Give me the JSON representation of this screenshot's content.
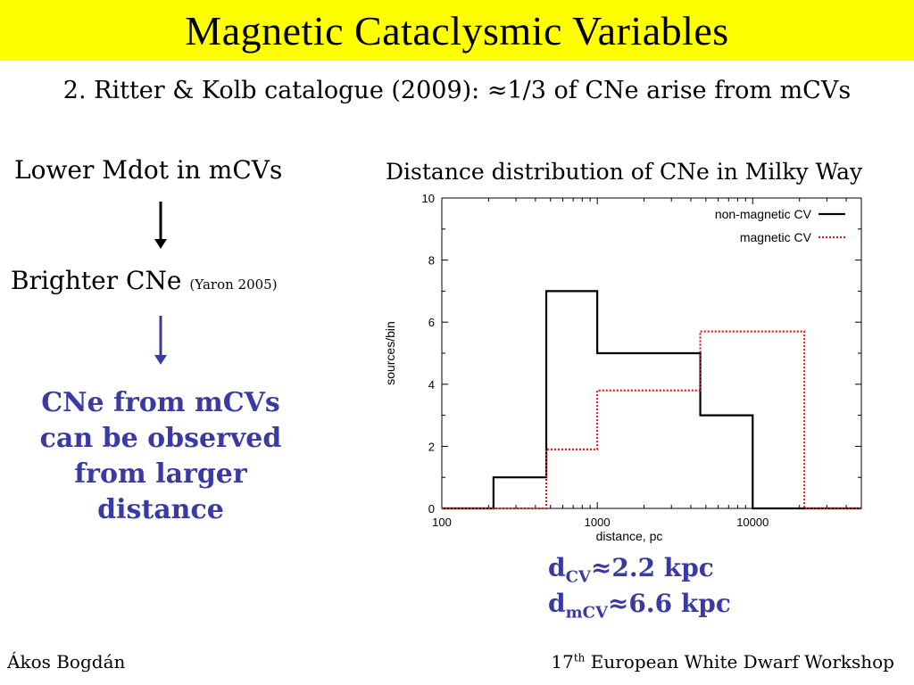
{
  "title": "Magnetic Cataclysmic Variables",
  "subtitle": "2. Ritter & Kolb catalogue (2009): ≈1/3 of CNe arise from mCVs",
  "left": {
    "lower_mdot": "Lower Mdot in mCVs",
    "brighter": "Brighter CNe",
    "brighter_cite": "(Yaron 2005)",
    "conclusion": "CNe from mCVs can be observed from larger distance"
  },
  "chart_title": "Distance distribution of CNe in Milky Way",
  "distances": {
    "cv_label": "d",
    "cv_sub": "CV",
    "cv_value": "≈2.2 kpc",
    "mcv_label": "d",
    "mcv_sub": "mCV",
    "mcv_value": "≈6.6 kpc"
  },
  "footer": {
    "author": "Ákos Bogdán",
    "event_num": "17",
    "event_sup": "th",
    "event_name": " European White Dwarf Workshop"
  },
  "colors": {
    "title_bg": "#ffff00",
    "accent": "#3a3aa3",
    "magnetic": "#cc2222",
    "nonmagnetic": "#000000"
  },
  "chart_data": {
    "type": "line",
    "xscale": "log",
    "xlim": [
      100,
      50000
    ],
    "ylim": [
      0,
      10
    ],
    "xlabel": "distance, pc",
    "ylabel": "sources/bin",
    "xticks": [
      100,
      1000,
      10000
    ],
    "xtick_labels": [
      "100",
      "1000",
      "10000"
    ],
    "yticks": [
      0,
      2,
      4,
      6,
      8,
      10
    ],
    "ytick_labels": [
      "0",
      "2",
      "4",
      "6",
      "8",
      "10"
    ],
    "legend_position": "top-right",
    "series": [
      {
        "name": "non-magnetic CV",
        "style": "solid",
        "edges": [
          100,
          215,
          470,
          1000,
          4600,
          10000,
          50000
        ],
        "values": [
          0,
          1,
          7,
          5,
          3,
          0
        ]
      },
      {
        "name": "magnetic CV",
        "style": "dotted",
        "edges": [
          100,
          470,
          1000,
          4600,
          21500,
          50000
        ],
        "values": [
          0,
          1.9,
          3.8,
          5.7,
          0
        ]
      }
    ]
  }
}
